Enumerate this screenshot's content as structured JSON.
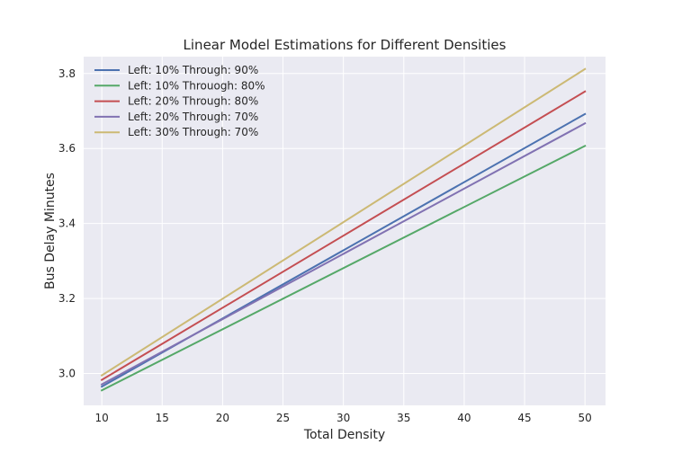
{
  "chart_data": {
    "type": "line",
    "title": "Linear Model Estimations for Different Densities",
    "xlabel": "Total Density",
    "ylabel": "Bus Delay Minutes",
    "xlim": [
      8.5,
      51.7
    ],
    "ylim": [
      2.915,
      3.845
    ],
    "xticks": [
      10,
      15,
      20,
      25,
      30,
      35,
      40,
      45,
      50
    ],
    "yticks": [
      3.0,
      3.2,
      3.4,
      3.6,
      3.8
    ],
    "xtick_labels": [
      "10",
      "15",
      "20",
      "25",
      "30",
      "35",
      "40",
      "45",
      "50"
    ],
    "ytick_labels": [
      "3.0",
      "3.2",
      "3.4",
      "3.6",
      "3.8"
    ],
    "grid": true,
    "legend_position": "upper-left",
    "background": "#eaeaf2",
    "series": [
      {
        "name": "Left: 10% Through: 90%",
        "color": "#4c72b0",
        "x": [
          10,
          50
        ],
        "y": [
          2.965,
          3.692
        ]
      },
      {
        "name": "Left: 10% Throuogh: 80%",
        "color": "#55a868",
        "x": [
          10,
          50
        ],
        "y": [
          2.955,
          3.607
        ]
      },
      {
        "name": "Left: 20% Through: 80%",
        "color": "#c44e52",
        "x": [
          10,
          50
        ],
        "y": [
          2.983,
          3.752
        ]
      },
      {
        "name": "Left: 20% Through: 70%",
        "color": "#8172b2",
        "x": [
          10,
          50
        ],
        "y": [
          2.971,
          3.667
        ]
      },
      {
        "name": "Left: 30% Through: 70%",
        "color": "#ccb974",
        "x": [
          10,
          50
        ],
        "y": [
          2.995,
          3.812
        ]
      }
    ]
  }
}
